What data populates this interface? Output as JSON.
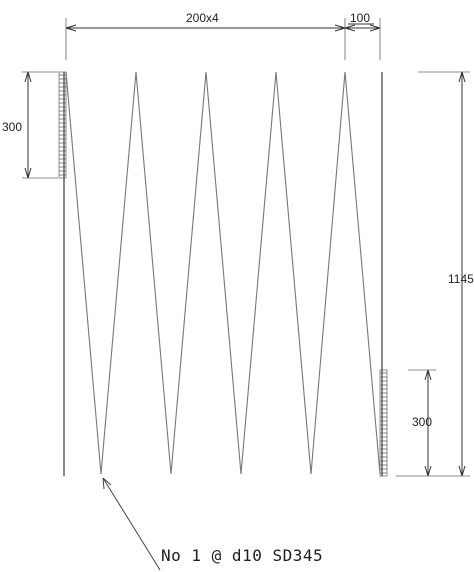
{
  "dimensions": {
    "top_spacing": "200x4",
    "top_end": "100",
    "left_height": "300",
    "right_total": "1145",
    "right_bottom": "300"
  },
  "callout": {
    "text": "No 1 @ d10 SD345"
  },
  "colors": {
    "line": "#777777",
    "text": "#222222",
    "background": "#ffffff"
  }
}
